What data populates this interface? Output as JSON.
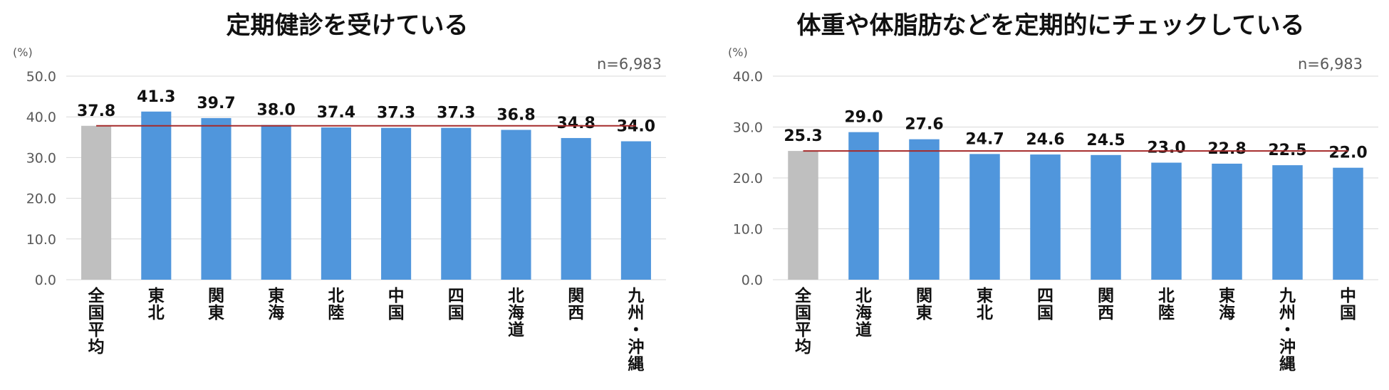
{
  "chart_data": [
    {
      "type": "bar",
      "title": "定期健診を受けている",
      "unit_label": "(%)",
      "sample_label": "n=6,983",
      "categories": [
        "全国平均",
        "東北",
        "関東",
        "東海",
        "北陸",
        "中国",
        "四国",
        "北海道",
        "関西",
        "九州・沖縄"
      ],
      "values": [
        37.8,
        41.3,
        39.7,
        38.0,
        37.4,
        37.3,
        37.3,
        36.8,
        34.8,
        34.0
      ],
      "value_labels": [
        "37.8",
        "41.3",
        "39.7",
        "38.0",
        "37.4",
        "37.3",
        "37.3",
        "36.8",
        "34.8",
        "34.0"
      ],
      "average_line": 37.8,
      "ylim": [
        0,
        50
      ],
      "yticks": [
        "0.0",
        "10.0",
        "20.0",
        "30.0",
        "40.0",
        "50.0"
      ],
      "grid": true,
      "colors": {
        "average_bar": "#BFBFBF",
        "bar": "#5096DC",
        "average_line": "#A52A2A",
        "grid": "#D9D9D9"
      }
    },
    {
      "type": "bar",
      "title": "体重や体脂肪などを定期的にチェックしている",
      "unit_label": "(%)",
      "sample_label": "n=6,983",
      "categories": [
        "全国平均",
        "北海道",
        "関東",
        "東北",
        "四国",
        "関西",
        "北陸",
        "東海",
        "九州・沖縄",
        "中国"
      ],
      "values": [
        25.3,
        29.0,
        27.6,
        24.7,
        24.6,
        24.5,
        23.0,
        22.8,
        22.5,
        22.0
      ],
      "value_labels": [
        "25.3",
        "29.0",
        "27.6",
        "24.7",
        "24.6",
        "24.5",
        "23.0",
        "22.8",
        "22.5",
        "22.0"
      ],
      "average_line": 25.3,
      "ylim": [
        0,
        40
      ],
      "yticks": [
        "0.0",
        "10.0",
        "20.0",
        "30.0",
        "40.0"
      ],
      "grid": true,
      "colors": {
        "average_bar": "#BFBFBF",
        "bar": "#5096DC",
        "average_line": "#A52A2A",
        "grid": "#D9D9D9"
      }
    }
  ]
}
